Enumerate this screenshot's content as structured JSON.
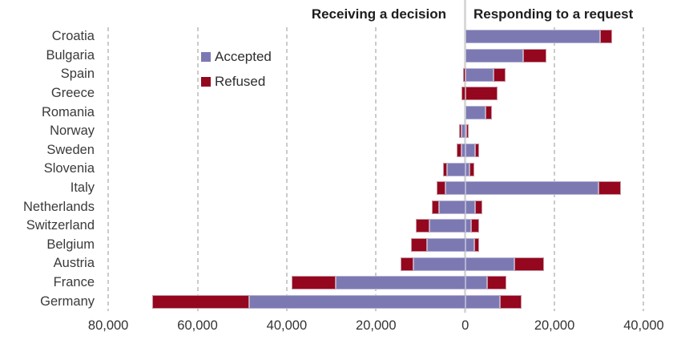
{
  "titles": {
    "left": "Receiving a decision",
    "right": "Responding to a request"
  },
  "legend": {
    "accepted": "Accepted",
    "refused": "Refused"
  },
  "colors": {
    "accepted": "#7C79B2",
    "accepted_border": "#b5b3d5",
    "refused": "#94071F",
    "refused_border": "#c795a0",
    "grid": "#cbcbcb",
    "zero_line": "#d9d9d9",
    "label_text": "#3a3a3a",
    "title_text": "#1d1d1d"
  },
  "chart_data": {
    "type": "bar",
    "variant": "horizontal-diverging-stacked",
    "title": "",
    "xlabel": "",
    "ylabel": "",
    "categories": [
      "Croatia",
      "Bulgaria",
      "Spain",
      "Greece",
      "Romania",
      "Norway",
      "Sweden",
      "Slovenia",
      "Italy",
      "Netherlands",
      "Switzerland",
      "Belgium",
      "Austria",
      "France",
      "Germany"
    ],
    "series": [
      {
        "name": "Receiving a decision - Accepted",
        "side": "left",
        "color_key": "accepted",
        "values": [
          0,
          0,
          0,
          0,
          0,
          800,
          800,
          4000,
          4400,
          5800,
          8000,
          8500,
          11700,
          29000,
          48500
        ]
      },
      {
        "name": "Receiving a decision - Refused",
        "side": "left",
        "color_key": "refused",
        "values": [
          0,
          0,
          500,
          800,
          0,
          600,
          1100,
          900,
          2000,
          1700,
          3100,
          3600,
          2700,
          9900,
          21700
        ]
      },
      {
        "name": "Responding to a request - Accepted",
        "side": "right",
        "color_key": "accepted",
        "values": [
          30200,
          13000,
          6400,
          0,
          4500,
          250,
          2300,
          1000,
          29800,
          2300,
          1300,
          2100,
          11100,
          4900,
          7700
        ]
      },
      {
        "name": "Responding to a request - Refused",
        "side": "right",
        "color_key": "refused",
        "values": [
          2800,
          5200,
          2600,
          7300,
          1400,
          550,
          900,
          1000,
          5100,
          1600,
          1900,
          950,
          6500,
          4300,
          4900
        ]
      }
    ],
    "x_axis": {
      "range": [
        -82000,
        48000
      ],
      "ticks": [
        {
          "value": -80000,
          "label": "80,000"
        },
        {
          "value": -60000,
          "label": "60,000"
        },
        {
          "value": -40000,
          "label": "40,000"
        },
        {
          "value": -20000,
          "label": "20,000"
        },
        {
          "value": 0,
          "label": "0"
        },
        {
          "value": 20000,
          "label": "20,000"
        },
        {
          "value": 40000,
          "label": "40,000"
        }
      ]
    },
    "grid": "dashed-vertical",
    "legend_position": "inside-top-left"
  }
}
